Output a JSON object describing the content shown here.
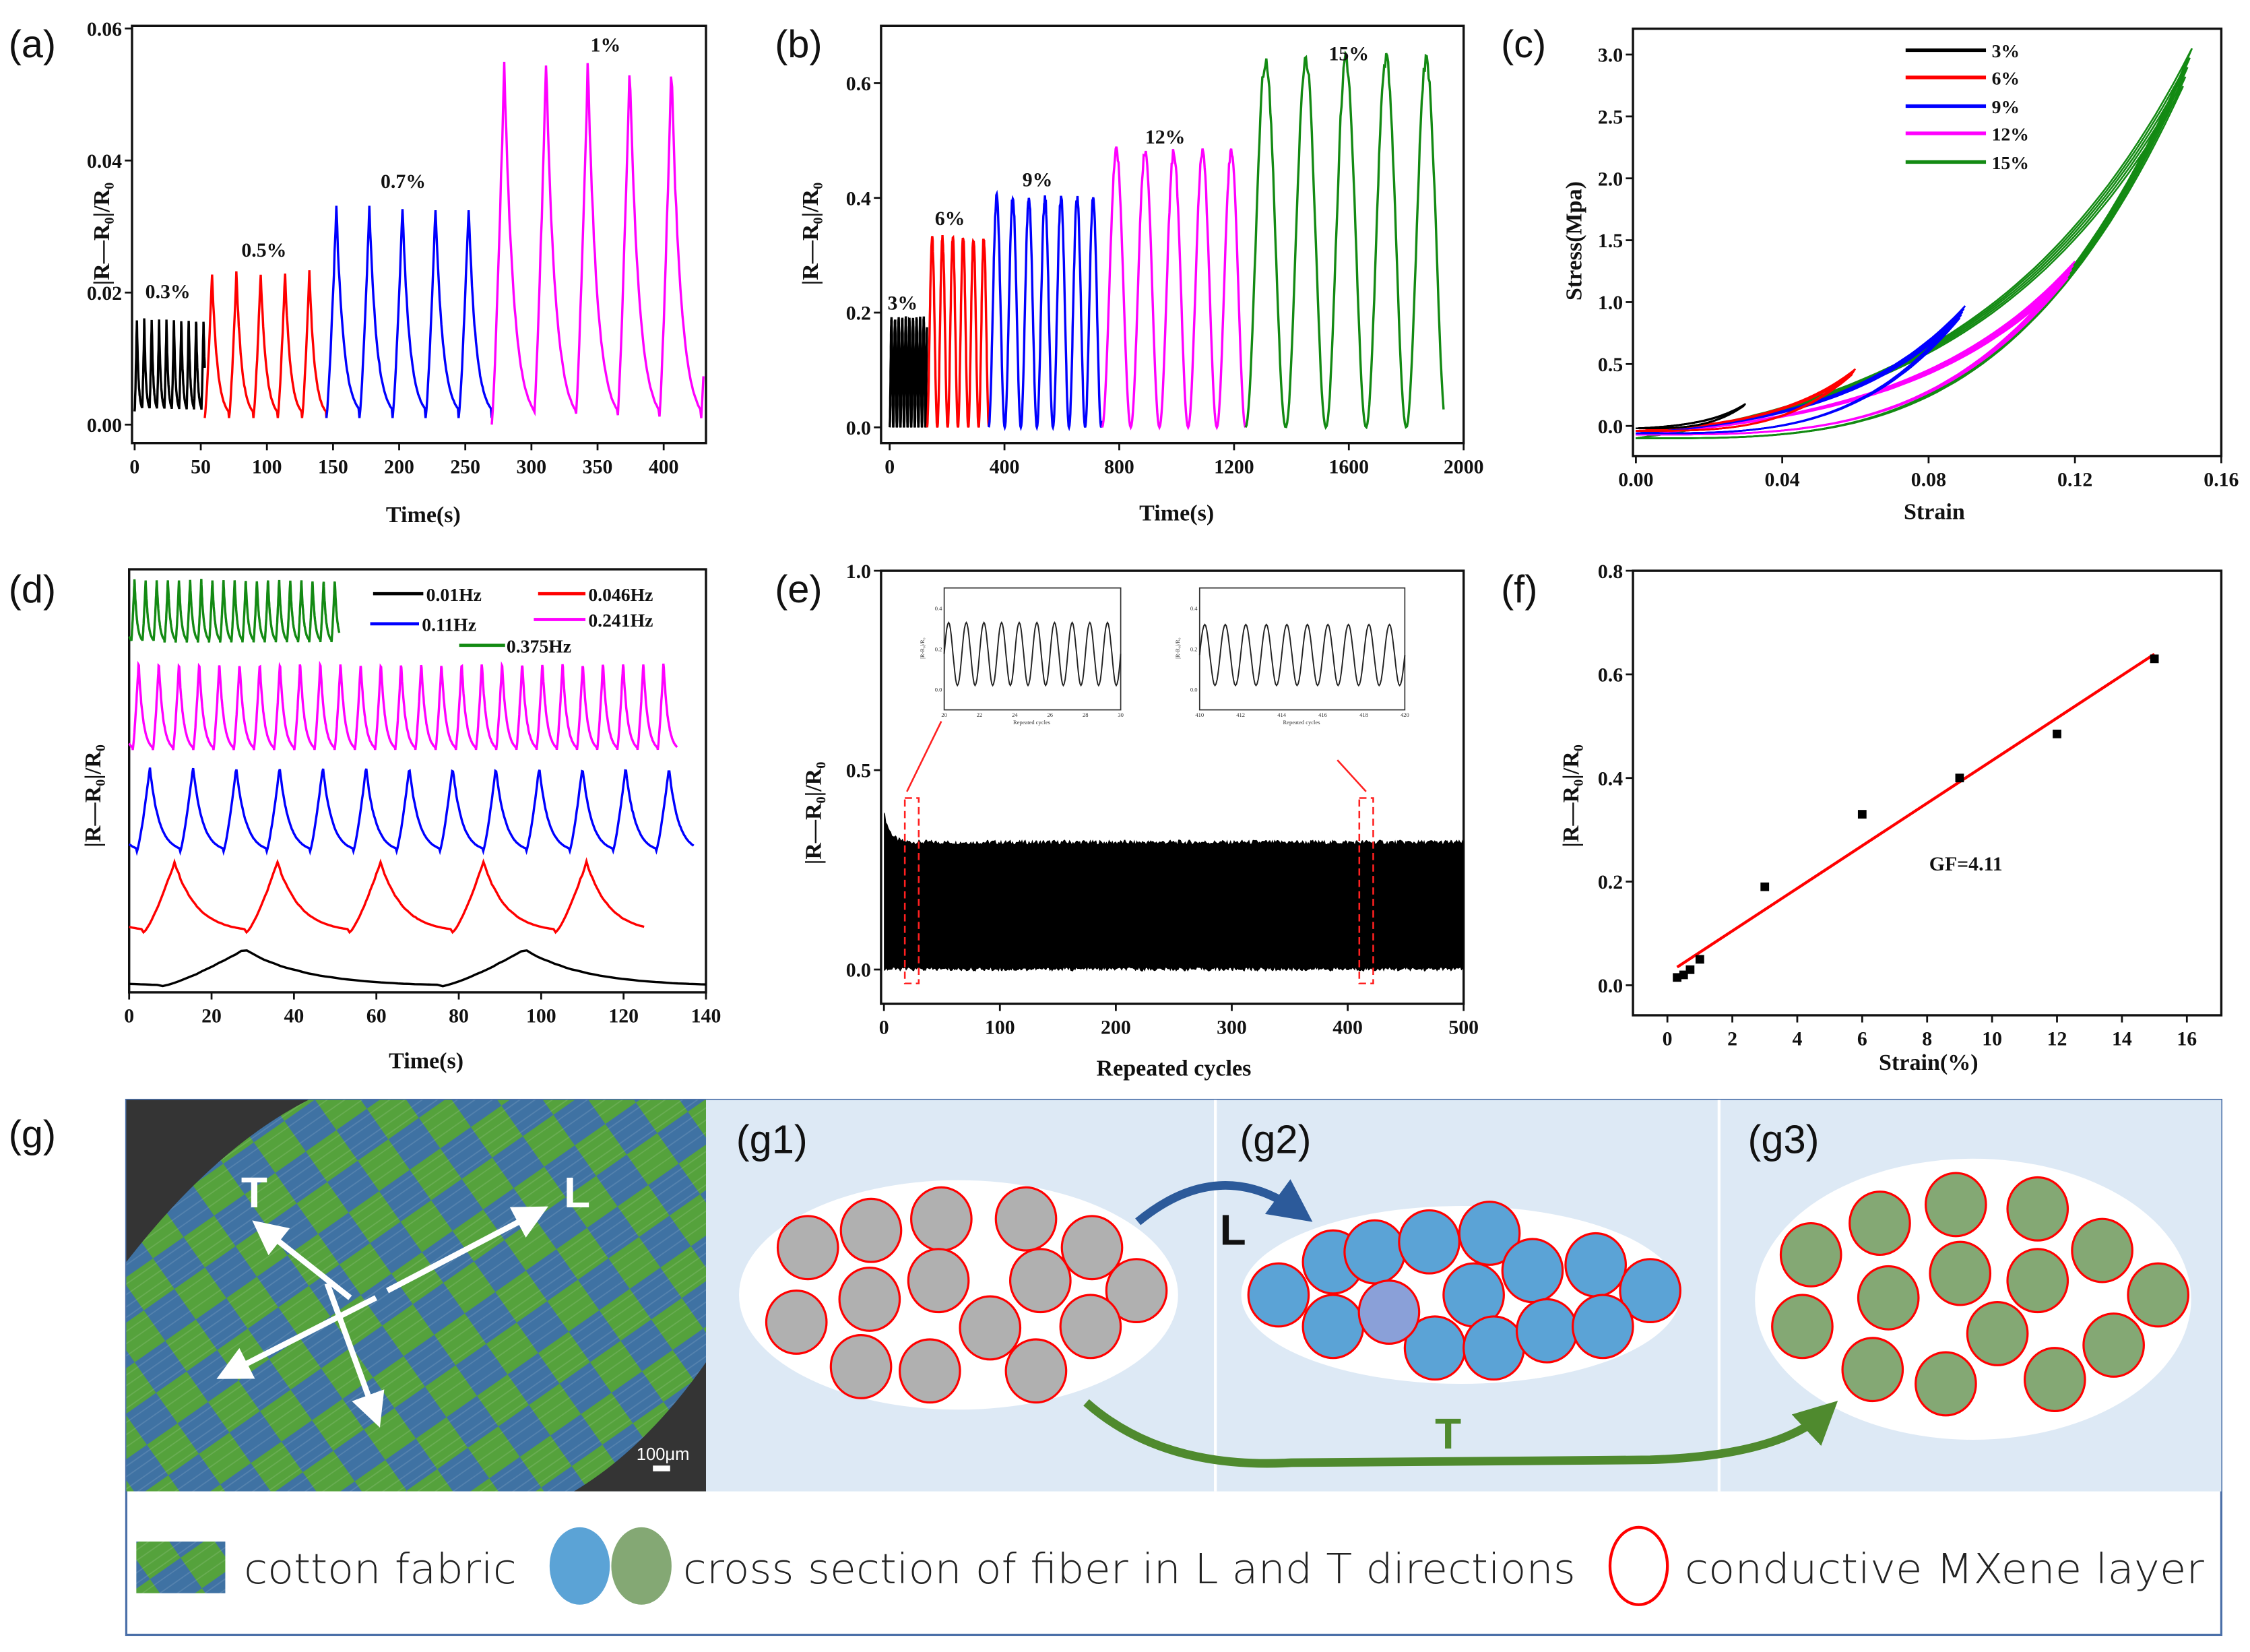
{
  "panel_labels": {
    "a": "(a)",
    "b": "(b)",
    "c": "(c)",
    "d": "(d)",
    "e": "(e)",
    "f": "(f)",
    "g": "(g)",
    "g1": "(g1)",
    "g2": "(g2)",
    "g3": "(g3)"
  },
  "chart_data": [
    {
      "id": "a",
      "type": "line",
      "xlabel": "Time(s)",
      "ylabel": "|R—R₀|/R₀",
      "xlim": [
        -2,
        432
      ],
      "ylim": [
        -0.0028,
        0.0604
      ],
      "xticks": [
        "0",
        "50",
        "100",
        "150",
        "200",
        "250",
        "300",
        "350",
        "400"
      ],
      "yticks": [
        "0.00",
        "0.02",
        "0.04",
        "0.06"
      ],
      "series": [
        {
          "name": "0.3%",
          "color": "#000000",
          "t_start": 0,
          "t_end": 53,
          "period": 5.6,
          "min": 0.002,
          "peak": 0.016
        },
        {
          "name": "0.5%",
          "color": "#ff0000",
          "t_start": 53,
          "t_end": 145,
          "period": 18.4,
          "min": 0.001,
          "peak": 0.023
        },
        {
          "name": "0.7%",
          "color": "#0000ff",
          "t_start": 145,
          "t_end": 270,
          "period": 25,
          "min": 0.001,
          "peak": 0.033
        },
        {
          "name": "1%",
          "color": "#ff00ff",
          "t_start": 270,
          "t_end": 430,
          "period": 31.6,
          "min": 0.0,
          "peak": 0.055
        }
      ],
      "annotations": [
        "0.3%",
        "0.5%",
        "0.7%",
        "1%"
      ]
    },
    {
      "id": "b",
      "type": "line",
      "xlabel": "Time(s)",
      "ylabel": "|R—R₀|/R₀",
      "xlim": [
        -30,
        2000
      ],
      "ylim": [
        -0.0275,
        0.7
      ],
      "xticks": [
        "0",
        "400",
        "800",
        "1200",
        "1600",
        "2000"
      ],
      "yticks": [
        "0.0",
        "0.2",
        "0.4",
        "0.6"
      ],
      "series": [
        {
          "name": "3%",
          "color": "#000000",
          "t_start": 0,
          "t_end": 130,
          "period": 12.5,
          "min": 0.0,
          "peak": 0.19
        },
        {
          "name": "6%",
          "color": "#ff0000",
          "t_start": 130,
          "t_end": 345,
          "period": 36,
          "min": 0.0,
          "peak": 0.33
        },
        {
          "name": "9%",
          "color": "#0000ff",
          "t_start": 345,
          "t_end": 740,
          "period": 56,
          "min": 0.0,
          "peak": 0.4
        },
        {
          "name": "12%",
          "color": "#ff00ff",
          "t_start": 740,
          "t_end": 1240,
          "period": 100,
          "min": 0.0,
          "peak": 0.48
        },
        {
          "name": "15%",
          "color": "#138a13",
          "t_start": 1240,
          "t_end": 1930,
          "period": 140,
          "min": 0.0,
          "peak": 0.64
        }
      ],
      "annotations": [
        "3%",
        "6%",
        "9%",
        "12%",
        "15%"
      ]
    },
    {
      "id": "c",
      "type": "line",
      "xlabel": "Strain",
      "ylabel": "Stress(Mpa)",
      "xlim": [
        -0.0008,
        0.16
      ],
      "ylim": [
        -0.243,
        3.209
      ],
      "xticks": [
        "0.00",
        "0.04",
        "0.08",
        "0.12",
        "0.16"
      ],
      "yticks": [
        "0.0",
        "0.5",
        "1.0",
        "1.5",
        "2.0",
        "2.5",
        "3.0"
      ],
      "legend_position": "top-center",
      "series": [
        {
          "name": "3%",
          "color": "#000000",
          "strain_max": 0.03,
          "stress_max": 0.18,
          "stress_start": -0.02,
          "loops": 5
        },
        {
          "name": "6%",
          "color": "#ff0000",
          "strain_max": 0.06,
          "stress_max": 0.46,
          "stress_start": -0.04,
          "loops": 5
        },
        {
          "name": "9%",
          "color": "#0000ff",
          "strain_max": 0.09,
          "stress_max": 0.97,
          "stress_start": -0.06,
          "loops": 5
        },
        {
          "name": "12%",
          "color": "#ff00ff",
          "strain_max": 0.12,
          "stress_max": 1.33,
          "stress_start": -0.07,
          "loops": 5
        },
        {
          "name": "15%",
          "color": "#138a13",
          "strain_max": 0.152,
          "stress_max": 3.05,
          "stress_start": -0.1,
          "loops": 5
        }
      ]
    },
    {
      "id": "d",
      "type": "line",
      "xlabel": "Time(s)",
      "ylabel": "|R—R₀|/R₀",
      "xlim": [
        0,
        140
      ],
      "ylim": [
        0,
        10
      ],
      "xticks": [
        "0",
        "20",
        "40",
        "60",
        "80",
        "100",
        "120",
        "140"
      ],
      "yticks": [],
      "legend_position": "top-right",
      "series": [
        {
          "name": "0.01Hz",
          "color": "#000000",
          "t_end": 140,
          "period": 68,
          "first_peak": 28,
          "min": 0.14,
          "peak": 1.02
        },
        {
          "name": "0.046Hz",
          "color": "#ff0000",
          "t_end": 125,
          "period": 25,
          "first_peak": 11,
          "min": 1.42,
          "peak": 3.08
        },
        {
          "name": "0.11Hz",
          "color": "#0000ff",
          "t_end": 137,
          "period": 10.5,
          "first_peak": 5,
          "min": 3.32,
          "peak": 5.32
        },
        {
          "name": "0.241Hz",
          "color": "#ff00ff",
          "t_end": 133,
          "period": 4.9,
          "first_peak": 2.3,
          "min": 5.7,
          "peak": 7.8
        },
        {
          "name": "0.375Hz",
          "color": "#138a13",
          "t_end": 51,
          "period": 2.7,
          "first_peak": 1.3,
          "min": 8.27,
          "peak": 9.76
        }
      ]
    },
    {
      "id": "e",
      "type": "area",
      "xlabel": "Repeated cycles",
      "ylabel": "|R—R₀|/R₀",
      "xlim": [
        -2.5,
        500
      ],
      "ylim": [
        -0.086,
        1.0
      ],
      "xticks": [
        "0",
        "100",
        "200",
        "300",
        "400",
        "500"
      ],
      "yticks": [
        "0.0",
        "0.5",
        "1.0"
      ],
      "cycles": 500,
      "initial_peak": 0.4,
      "steady_peak": 0.32,
      "min": 0.0,
      "highlight_ranges": [
        [
          18,
          30
        ],
        [
          410,
          422
        ]
      ],
      "insets": [
        {
          "xlabel": "Repeated cycles",
          "ylabel": "|R-R₀|/R₀",
          "xticks": [
            "20",
            "22",
            "24",
            "26",
            "28",
            "30"
          ],
          "yticks": [
            "0.0",
            "0.2",
            "0.4"
          ],
          "cycles": 10,
          "min": 0.02,
          "peak": 0.33
        },
        {
          "xlabel": "Repeated cycles",
          "ylabel": "|R-R₀|/R₀",
          "xticks": [
            "410",
            "412",
            "414",
            "416",
            "418",
            "420"
          ],
          "yticks": [
            "0.0",
            "0.2",
            "0.4"
          ],
          "cycles": 10,
          "min": 0.02,
          "peak": 0.32
        }
      ]
    },
    {
      "id": "f",
      "type": "scatter",
      "xlabel": "Strain(%)",
      "ylabel": "|R—R₀|/R₀",
      "xlim": [
        -1.06,
        17.06
      ],
      "ylim": [
        -0.058,
        0.8
      ],
      "xticks": [
        "0",
        "2",
        "4",
        "6",
        "8",
        "10",
        "12",
        "14",
        "16"
      ],
      "yticks": [
        "0.0",
        "0.2",
        "0.4",
        "0.6",
        "0.8"
      ],
      "points": [
        [
          0.3,
          0.015
        ],
        [
          0.5,
          0.02
        ],
        [
          0.7,
          0.03
        ],
        [
          1,
          0.05
        ],
        [
          3,
          0.19
        ],
        [
          6,
          0.33
        ],
        [
          9,
          0.4
        ],
        [
          12,
          0.485
        ],
        [
          15,
          0.63
        ]
      ],
      "fit": {
        "slope": 0.0411,
        "intercept": 0.0226,
        "x_range": [
          0.3,
          15
        ],
        "color": "#ff0000"
      },
      "annotation": "GF=4.11"
    }
  ],
  "schematic": {
    "sem": {
      "label_T": "T",
      "label_L": "L",
      "scale_bar": "100μm"
    },
    "arrows": {
      "L": "L",
      "T": "T"
    },
    "colors": {
      "fiber_L": "#5ba3d6",
      "fiber_T": "#84a874",
      "fiber_unstretched": "#b0b0b0",
      "mxene": "#ff0000",
      "panel_bg": "#dde9f5"
    },
    "legend": [
      "cotton fabric",
      "cross section of fiber in L and T directions",
      "conductive MXene layer"
    ]
  }
}
